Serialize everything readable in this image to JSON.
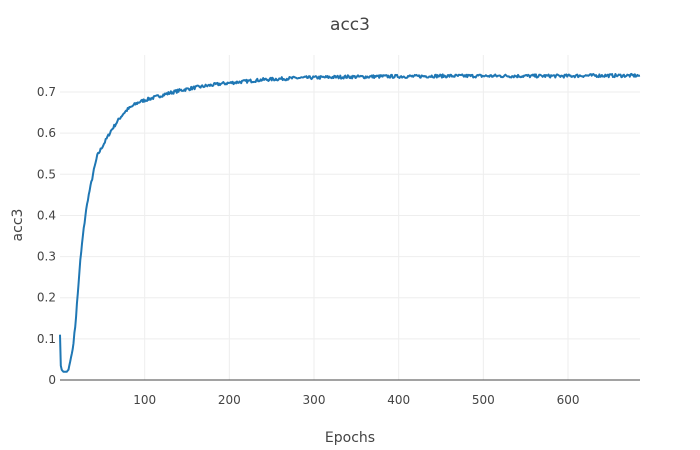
{
  "chart_data": {
    "type": "line",
    "title": "acc3",
    "xlabel": "Epochs",
    "ylabel": "acc3",
    "xlim": [
      0,
      685
    ],
    "ylim": [
      0,
      0.79
    ],
    "x_ticks": [
      100,
      200,
      300,
      400,
      500,
      600
    ],
    "y_ticks": [
      0,
      0.1,
      0.2,
      0.3,
      0.4,
      0.5,
      0.6,
      0.7
    ],
    "grid": true,
    "colors": {
      "line": "#1f77b4",
      "grid": "#eeeeee",
      "axis": "#444444",
      "text": "#444444"
    },
    "series": [
      {
        "x": [
          0,
          1,
          2,
          4,
          6,
          8,
          10,
          12,
          15,
          18,
          21,
          24,
          27,
          30,
          33,
          36,
          40,
          44,
          48,
          52,
          56,
          60,
          65,
          70,
          75,
          80,
          85,
          90,
          95,
          100,
          110,
          120,
          130,
          140,
          150,
          160,
          170,
          180,
          190,
          200,
          210,
          220,
          230,
          240,
          250,
          260,
          280,
          300,
          320,
          340,
          360,
          380,
          400,
          420,
          440,
          460,
          480,
          500,
          520,
          540,
          560,
          580,
          600,
          620,
          640,
          660,
          685
        ],
        "values": [
          0.11,
          0.035,
          0.025,
          0.02,
          0.02,
          0.02,
          0.025,
          0.045,
          0.075,
          0.13,
          0.21,
          0.29,
          0.35,
          0.4,
          0.44,
          0.47,
          0.51,
          0.545,
          0.56,
          0.575,
          0.59,
          0.605,
          0.62,
          0.635,
          0.648,
          0.658,
          0.665,
          0.672,
          0.677,
          0.68,
          0.686,
          0.692,
          0.698,
          0.703,
          0.707,
          0.711,
          0.714,
          0.717,
          0.72,
          0.722,
          0.724,
          0.726,
          0.728,
          0.73,
          0.731,
          0.732,
          0.734,
          0.735,
          0.736,
          0.737,
          0.737,
          0.738,
          0.738,
          0.738,
          0.739,
          0.739,
          0.739,
          0.739,
          0.739,
          0.739,
          0.739,
          0.739,
          0.739,
          0.74,
          0.74,
          0.74,
          0.74
        ]
      }
    ]
  }
}
